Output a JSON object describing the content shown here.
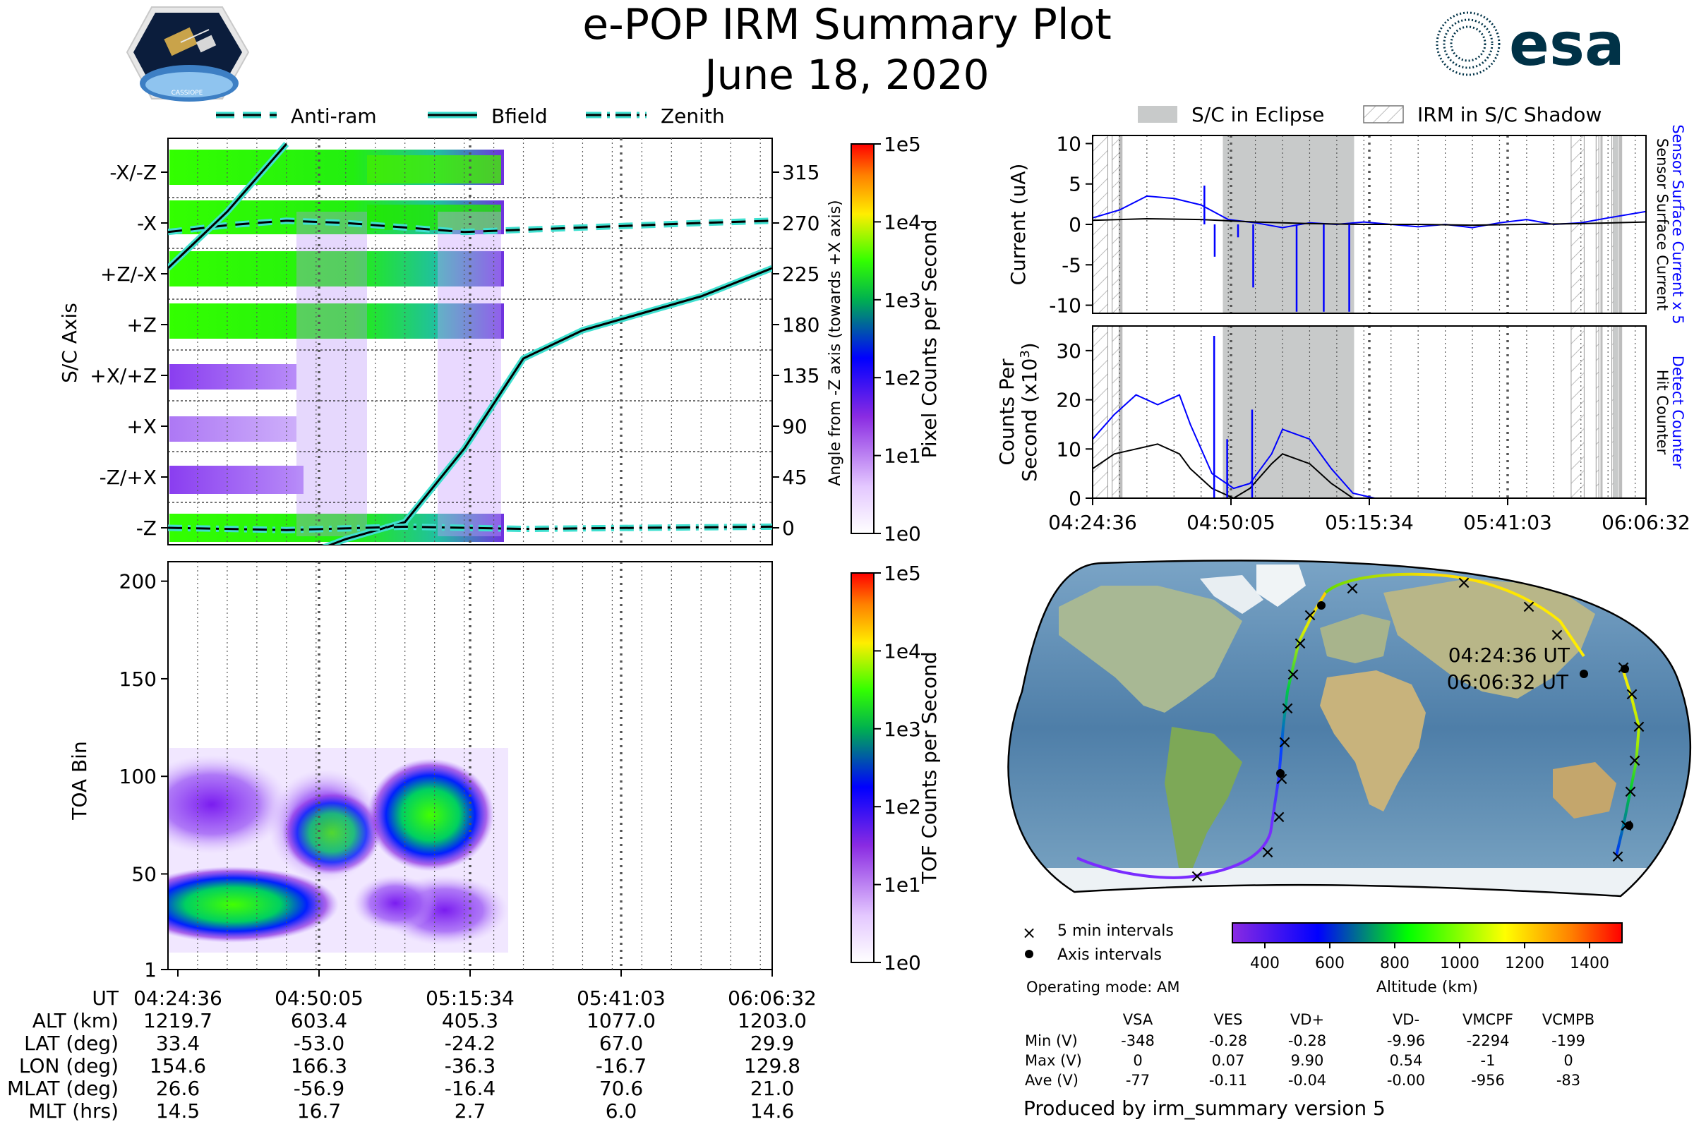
{
  "title": "e-POP IRM Summary Plot",
  "date": "June 18, 2020",
  "logos": {
    "left_text": "CASSIOPE",
    "right_text": "esa"
  },
  "colors": {
    "text": "#000000",
    "blue": "#0000ff",
    "teal": "#40e0d0",
    "eclipse": "#c8caca",
    "esa_blue": "#003247"
  },
  "chart_data": [
    {
      "id": "pixel-counts",
      "type": "heatmap",
      "title": "",
      "legend": [
        {
          "label": "Anti-ram",
          "style": "dashed"
        },
        {
          "label": "Bfield",
          "style": "solid"
        },
        {
          "label": "Zenith",
          "style": "dashdot"
        }
      ],
      "ylabel": "S/C Axis",
      "y2label": "Angle from -Z axis (towards +X axis)",
      "ytick_labels": [
        "-X/-Z",
        "-X",
        "+Z/-X",
        "+Z",
        "+X/+Z",
        "+X",
        "-Z/+X",
        "-Z"
      ],
      "y2ticks": [
        315,
        270,
        225,
        180,
        135,
        90,
        45,
        0
      ],
      "y2lim": [
        -15,
        345
      ],
      "xlim_min": [
        0,
        102
      ],
      "colorbar": {
        "label": "Pixel Counts per Second",
        "ticks": [
          "1e5",
          "1e4",
          "1e3",
          "1e2",
          "1e1",
          "1e0"
        ]
      },
      "series": [
        {
          "name": "Anti-ram",
          "x": [
            0,
            10,
            20,
            30,
            40,
            50,
            60,
            70,
            80,
            90,
            102
          ],
          "y": [
            262,
            268,
            272,
            270,
            266,
            262,
            264,
            266,
            268,
            270,
            272
          ]
        },
        {
          "name": "Bfield",
          "x": [
            0,
            10,
            20,
            25,
            30,
            40,
            50,
            60,
            70,
            80,
            90,
            102
          ],
          "y": [
            230,
            280,
            340,
            -20,
            -10,
            5,
            70,
            150,
            175,
            190,
            205,
            230
          ]
        },
        {
          "name": "Zenith",
          "x": [
            0,
            20,
            40,
            60,
            80,
            102
          ],
          "y": [
            0,
            -2,
            1,
            -1,
            0,
            1
          ]
        }
      ]
    },
    {
      "id": "tof-counts",
      "type": "heatmap",
      "ylabel": "TOA Bin",
      "yticks": [
        1,
        50,
        100,
        150,
        200
      ],
      "ylim": [
        1,
        210
      ],
      "xlim_min": [
        0,
        102
      ],
      "colorbar": {
        "label": "TOF Counts per Second",
        "ticks": [
          "1e5",
          "1e4",
          "1e3",
          "1e2",
          "1e1",
          "1e0"
        ]
      }
    },
    {
      "id": "surface-current",
      "type": "line",
      "ylabel": "Current (uA)",
      "yticks": [
        10,
        5,
        0,
        -5,
        -10
      ],
      "ylim": [
        -11,
        11
      ],
      "right_labels": [
        "Sensor Surface Current x 5",
        "Sensor Surface Current"
      ],
      "legend": [
        {
          "label": "S/C in Eclipse"
        },
        {
          "label": "IRM in S/C Shadow"
        }
      ],
      "series": [
        {
          "name": "Sensor Surface Current x 5",
          "x": [
            0,
            5,
            10,
            15,
            20,
            25,
            30,
            35,
            40,
            45,
            50,
            55,
            60,
            65,
            70,
            75,
            80,
            85,
            90,
            95,
            102
          ],
          "y": [
            0.8,
            1.8,
            3.5,
            3.2,
            2.4,
            0.6,
            0.2,
            -0.4,
            0.2,
            0.0,
            0.3,
            0.0,
            -0.3,
            0.0,
            -0.4,
            0.2,
            0.6,
            0.0,
            0.2,
            0.8,
            1.6
          ]
        },
        {
          "name": "Sensor Surface Current",
          "x": [
            0,
            10,
            20,
            30,
            40,
            50,
            60,
            70,
            80,
            90,
            102
          ],
          "y": [
            0.5,
            0.7,
            0.6,
            0.3,
            0.1,
            0.0,
            0.0,
            -0.1,
            0.0,
            0.1,
            0.3
          ]
        }
      ]
    },
    {
      "id": "counts",
      "type": "line",
      "ylabel": "Counts Per",
      "ylabel2": "Second (x10",
      "ylabel_exp": "3",
      "yticks": [
        0,
        10,
        20,
        30
      ],
      "ylim": [
        0,
        35
      ],
      "right_labels": [
        "Detect Counter",
        "Hit Counter"
      ],
      "xtick_labels": [
        "04:24:36",
        "04:50:05",
        "05:15:34",
        "05:41:03",
        "06:06:32"
      ],
      "series": [
        {
          "name": "Detect Counter",
          "x": [
            0,
            4,
            8,
            12,
            16,
            18,
            22,
            26,
            29,
            33,
            35,
            40,
            44,
            48,
            52,
            56,
            60,
            102
          ],
          "y": [
            12,
            17,
            21,
            19,
            21,
            15,
            5,
            2,
            3,
            9,
            14,
            12,
            6,
            1,
            0,
            0,
            0,
            0
          ]
        },
        {
          "name": "Hit Counter",
          "x": [
            0,
            4,
            8,
            12,
            16,
            18,
            22,
            26,
            29,
            33,
            35,
            40,
            44,
            48,
            52,
            56,
            60,
            102
          ],
          "y": [
            6,
            9,
            10,
            11,
            9,
            6,
            2,
            0,
            2,
            7,
            9,
            7,
            3,
            0,
            0,
            0,
            0,
            0
          ]
        }
      ]
    },
    {
      "id": "ground-track",
      "type": "scatter",
      "annotations": [
        "04:24:36 UT",
        "06:06:32 UT"
      ],
      "legend": [
        {
          "label": "5 min intervals",
          "marker": "x"
        },
        {
          "label": "Axis intervals",
          "marker": "dot"
        }
      ],
      "colorbar": {
        "label": "Altitude (km)",
        "ticks": [
          400,
          600,
          800,
          1000,
          1200,
          1400
        ],
        "range": [
          300,
          1500
        ]
      }
    }
  ],
  "xaxis": {
    "time_labels": [
      "04:24:36",
      "04:50:05",
      "05:15:34",
      "05:41:03",
      "06:06:32"
    ],
    "rows": [
      {
        "label": "UT",
        "values": []
      },
      {
        "label": "ALT (km)",
        "values": [
          "1219.7",
          "603.4",
          "405.3",
          "1077.0",
          "1203.0"
        ]
      },
      {
        "label": "LAT (deg)",
        "values": [
          "33.4",
          "-53.0",
          "-24.2",
          "67.0",
          "29.9"
        ]
      },
      {
        "label": "LON (deg)",
        "values": [
          "154.6",
          "166.3",
          "-36.3",
          "-16.7",
          "129.8"
        ]
      },
      {
        "label": "MLAT (deg)",
        "values": [
          "26.6",
          "-56.9",
          "-16.4",
          "70.6",
          "21.0"
        ]
      },
      {
        "label": "MLT (hrs)",
        "values": [
          "14.5",
          "16.7",
          "2.7",
          "6.0",
          "14.6"
        ]
      }
    ]
  },
  "mode": "Operating mode: AM",
  "voltage_table": {
    "headers": [
      "VSA",
      "VES",
      "VD+",
      "VD-",
      "VMCPF",
      "VCMPB"
    ],
    "rows": [
      {
        "label": "Min (V)",
        "values": [
          "-348",
          "-0.28",
          "-0.28",
          "-9.96",
          "-2294",
          "-199"
        ]
      },
      {
        "label": "Max (V)",
        "values": [
          "0",
          "0.07",
          "9.90",
          "0.54",
          "-1",
          "0"
        ]
      },
      {
        "label": "Ave (V)",
        "values": [
          "-77",
          "-0.11",
          "-0.04",
          "-0.00",
          "-956",
          "-83"
        ]
      }
    ]
  },
  "footer": "Produced by irm_summary version 5"
}
